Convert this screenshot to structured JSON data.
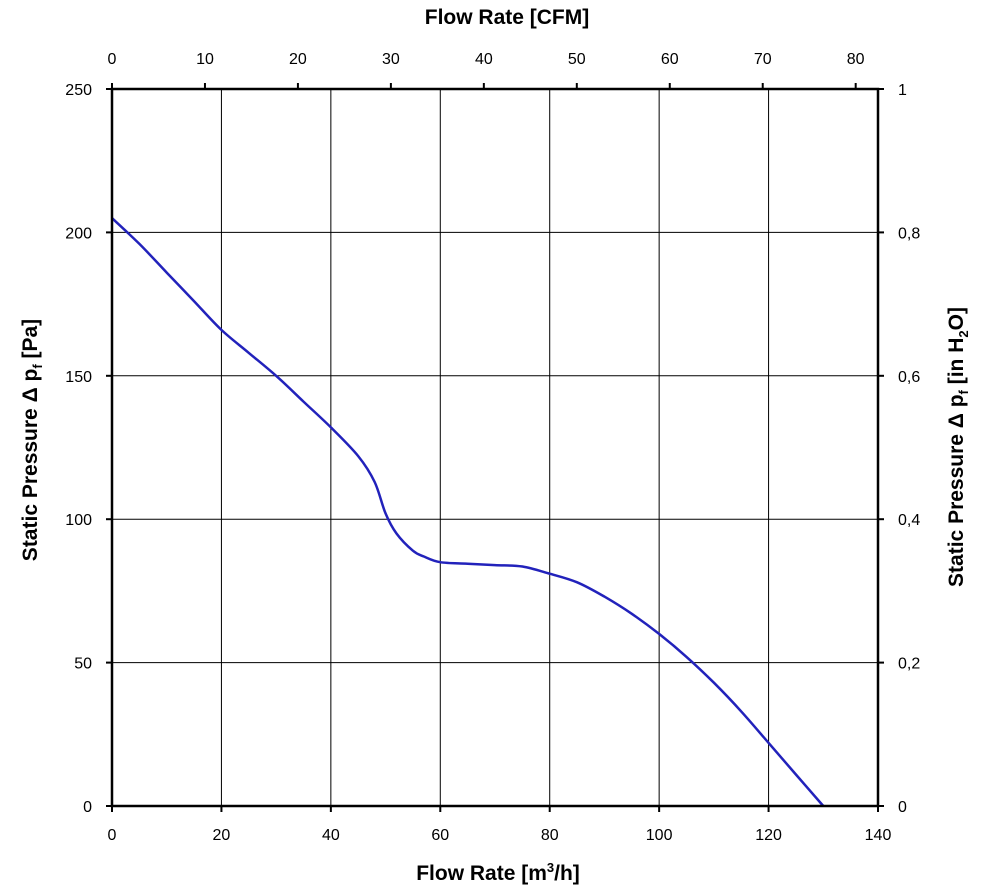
{
  "chart_data": {
    "type": "line",
    "title": "",
    "x_bottom": {
      "label_main": "Flow Rate [m",
      "label_sup": "3",
      "label_end": "/h]",
      "min": 0,
      "max": 140,
      "ticks": [
        0,
        20,
        40,
        60,
        80,
        100,
        120,
        140
      ]
    },
    "x_top": {
      "label": "Flow Rate [CFM]",
      "min": 0,
      "max": 82.4,
      "ticks": [
        0,
        10,
        20,
        30,
        40,
        50,
        60,
        70,
        80
      ]
    },
    "y_left": {
      "label_pre": "Static Pressure Δ p",
      "label_sub": "f",
      "label_post": " [Pa]",
      "min": 0,
      "max": 250,
      "ticks": [
        0,
        50,
        100,
        150,
        200,
        250
      ]
    },
    "y_right": {
      "label_pre": "Static Pressure Δ p",
      "label_sub": "f",
      "label_mid": " [in H",
      "label_sub2": "2",
      "label_post": "O]",
      "min": 0,
      "max": 1,
      "ticks": [
        0,
        0.2,
        0.4,
        0.6,
        0.8,
        1
      ],
      "tick_labels": [
        "0",
        "0,2",
        "0,4",
        "0,6",
        "0,8",
        "1"
      ]
    },
    "grid": true,
    "legend": "none",
    "series": [
      {
        "color": "#2222bb",
        "x": [
          0,
          5,
          10,
          15,
          20,
          25,
          30,
          35,
          40,
          45,
          48,
          50,
          52,
          55,
          57,
          60,
          65,
          70,
          75,
          80,
          85,
          90,
          95,
          100,
          105,
          110,
          115,
          120,
          125,
          130
        ],
        "y": [
          205,
          196,
          186,
          176,
          166,
          158,
          150,
          141,
          132,
          122,
          113,
          102,
          95,
          89,
          87,
          85,
          84.5,
          84,
          83.5,
          81,
          78,
          73,
          67,
          60,
          52,
          43,
          33,
          22,
          11,
          0
        ]
      }
    ]
  }
}
